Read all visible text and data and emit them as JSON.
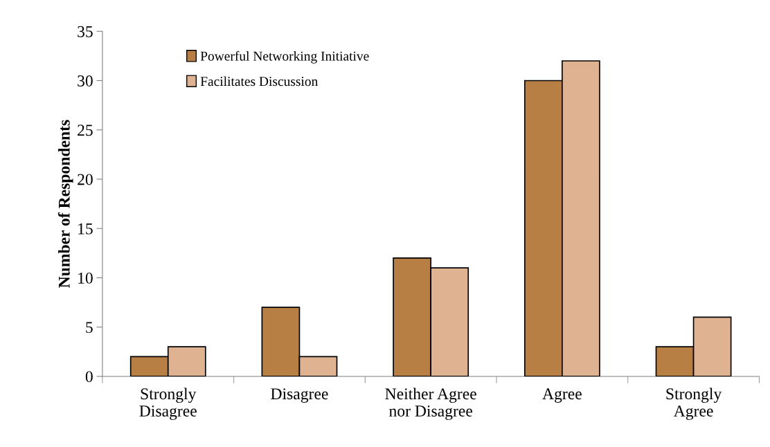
{
  "chart_data": {
    "type": "bar",
    "ylabel": "Number of Respondents",
    "categories": [
      "Strongly\nDisagree",
      "Disagree",
      "Neither Agree\nnor Disagree",
      "Agree",
      "Strongly\nAgree"
    ],
    "series": [
      {
        "name": "Powerful Networking Initiative",
        "color": "#b87f44",
        "values": [
          2,
          7,
          12,
          30,
          3
        ]
      },
      {
        "name": "Facilitates Discussion",
        "color": "#dfb391",
        "values": [
          3,
          2,
          11,
          32,
          6
        ]
      }
    ],
    "ylim": [
      0,
      35
    ],
    "yticks": [
      0,
      5,
      10,
      15,
      20,
      25,
      30,
      35
    ],
    "grid": false,
    "legend": "top left"
  }
}
